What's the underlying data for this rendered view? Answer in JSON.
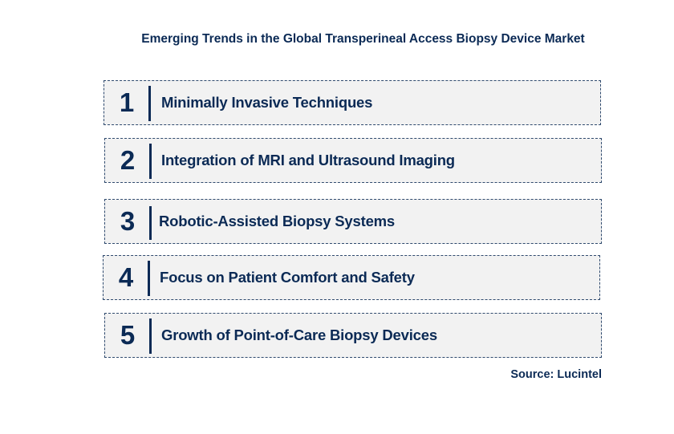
{
  "title": "Emerging Trends in the Global Transperineal Access Biopsy Device Market",
  "trends": [
    {
      "number": "1",
      "label": "Minimally Invasive Techniques"
    },
    {
      "number": "2",
      "label": "Integration of MRI and Ultrasound Imaging"
    },
    {
      "number": "3",
      "label": "Robotic-Assisted Biopsy Systems"
    },
    {
      "number": "4",
      "label": "Focus on Patient Comfort and Safety"
    },
    {
      "number": "5",
      "label": "Growth of Point-of-Care Biopsy Devices"
    }
  ],
  "source": "Source: Lucintel",
  "colors": {
    "text": "#0b2a55",
    "box_fill": "#f2f2f2",
    "box_border": "#2f4a6e"
  }
}
